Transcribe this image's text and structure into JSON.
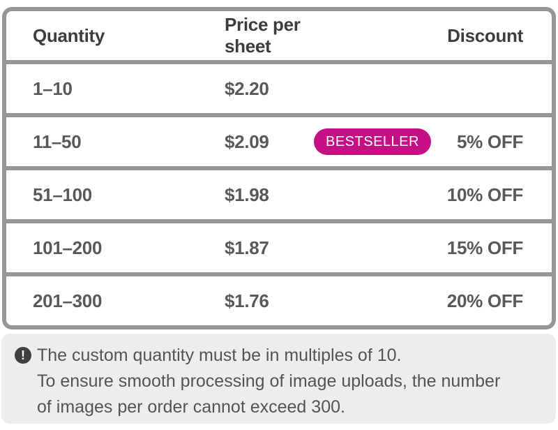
{
  "table": {
    "headers": {
      "quantity": "Quantity",
      "price": "Price per sheet",
      "discount": "Discount"
    },
    "rows": [
      {
        "quantity": "1–10",
        "price": "$2.20",
        "badge": "",
        "discount": ""
      },
      {
        "quantity": "11–50",
        "price": "$2.09",
        "badge": "BESTSELLER",
        "discount": "5% OFF"
      },
      {
        "quantity": "51–100",
        "price": "$1.98",
        "badge": "",
        "discount": "10% OFF"
      },
      {
        "quantity": "101–200",
        "price": "$1.87",
        "badge": "",
        "discount": "15% OFF"
      },
      {
        "quantity": "201–300",
        "price": "$1.76",
        "badge": "",
        "discount": "20% OFF"
      }
    ]
  },
  "note": {
    "icon_glyph": "!",
    "lines": [
      "The custom quantity must be in multiples of 10.",
      "To ensure smooth processing of image uploads, the number",
      "of images per order cannot exceed 300."
    ]
  },
  "colors": {
    "badge_bg": "#C51085",
    "badge_text": "#FFFFFF",
    "table_border_gray": "#969696",
    "header_text": "#3D3D3D",
    "cell_text": "#595959",
    "note_bg": "#EDEDED",
    "note_text": "#545454",
    "note_icon_bg": "#3F3F3F"
  }
}
